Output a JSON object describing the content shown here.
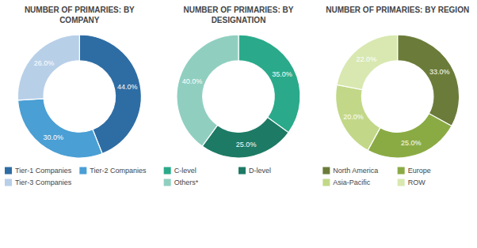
{
  "chart_data": [
    {
      "type": "donut",
      "title": "NUMBER OF PRIMARIES: BY\nCOMPANY",
      "categories": [
        "Tier-1 Companies",
        "Tier-2 Companies",
        "Tier-3 Companies"
      ],
      "values": [
        44.0,
        30.0,
        26.0
      ],
      "value_labels": [
        "44.0%",
        "30.0%",
        "26.0%"
      ],
      "colors": [
        "#2e6da4",
        "#4a9fd4",
        "#b8cfe8"
      ],
      "data_labels": true,
      "legend": "bottom"
    },
    {
      "type": "donut",
      "title": "NUMBER OF PRIMARIES: BY\nDESIGNATION",
      "categories": [
        "C-level",
        "D-level",
        "Others*"
      ],
      "values": [
        35.0,
        25.0,
        40.0
      ],
      "value_labels": [
        "35.0%",
        "25.0%",
        "40.0%"
      ],
      "colors": [
        "#2aaa8a",
        "#1d7a65",
        "#90cfc0"
      ],
      "data_labels": true,
      "legend": "bottom"
    },
    {
      "type": "donut",
      "title": "NUMBER OF PRIMARIES: BY REGION",
      "categories": [
        "North America",
        "Europe",
        "Asia-Pacific",
        "ROW"
      ],
      "values": [
        33.0,
        25.0,
        20.0,
        22.0
      ],
      "value_labels": [
        "33.0%",
        "25.0%",
        "20.0%",
        "22.0%"
      ],
      "colors": [
        "#6b7c3a",
        "#8aab44",
        "#c2d888",
        "#d8e8b0"
      ],
      "data_labels": true,
      "legend": "bottom"
    }
  ]
}
